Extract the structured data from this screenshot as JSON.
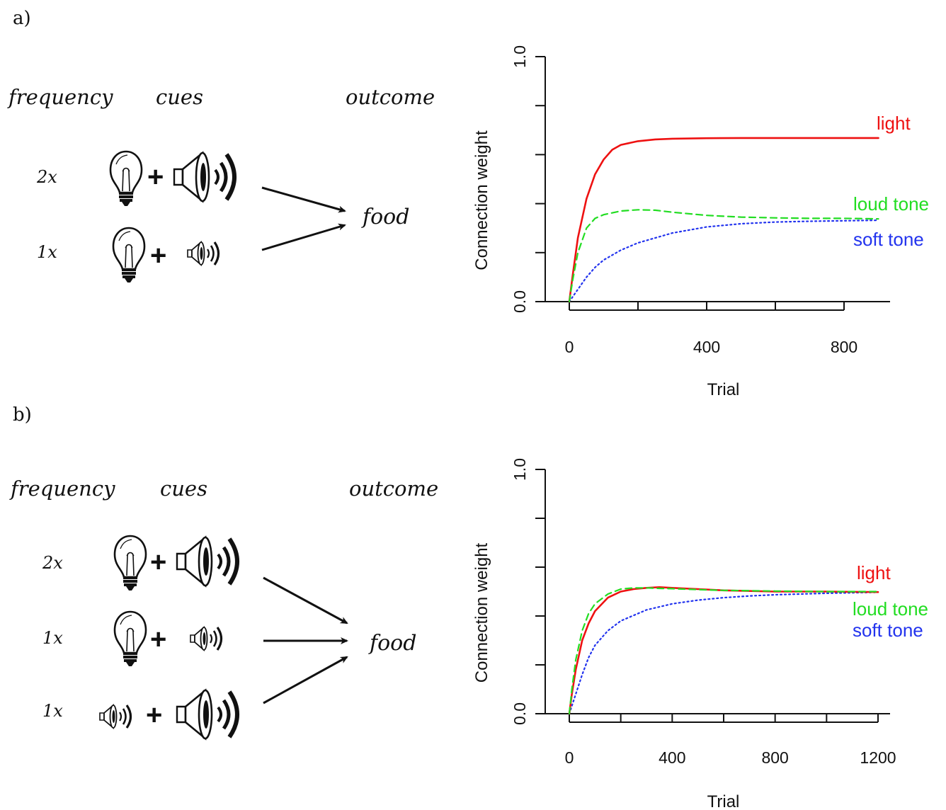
{
  "panels": [
    {
      "id": "a",
      "label": "a)",
      "headers": {
        "frequency": "frequency",
        "cues": "cues",
        "outcome": "outcome"
      },
      "rows": [
        {
          "frequency": "2x",
          "cue1": "light",
          "cue2": "loud tone"
        },
        {
          "frequency": "1x",
          "cue1": "light",
          "cue2": "soft tone"
        }
      ],
      "outcome": "food",
      "chart": {
        "type": "line",
        "xlabel": "Trial",
        "ylabel": "Connection weight",
        "xlim": [
          0,
          900
        ],
        "ylim": [
          0,
          1.0
        ],
        "xticks": [
          0,
          200,
          400,
          600,
          800
        ],
        "xtick_labels": [
          "0",
          "",
          "400",
          "",
          "800"
        ],
        "yticks": [
          0,
          0.2,
          0.4,
          0.6,
          0.8,
          1.0
        ],
        "ytick_labels": [
          "0.0",
          "",
          "",
          "",
          "",
          "1.0"
        ],
        "series": [
          {
            "name": "light",
            "color": "#ee1111",
            "dash": "solid",
            "x": [
              0,
              10,
              25,
              50,
              75,
              100,
              125,
              150,
              200,
              250,
              300,
              400,
              500,
              600,
              700,
              800,
              900
            ],
            "y": [
              0,
              0.11,
              0.26,
              0.42,
              0.52,
              0.58,
              0.62,
              0.64,
              0.655,
              0.662,
              0.665,
              0.667,
              0.668,
              0.668,
              0.668,
              0.668,
              0.668
            ]
          },
          {
            "name": "loud tone",
            "color": "#22dd22",
            "dash": "dashed",
            "x": [
              0,
              10,
              25,
              50,
              75,
              100,
              150,
              200,
              250,
              300,
              400,
              500,
              600,
              700,
              800,
              900
            ],
            "y": [
              0,
              0.09,
              0.2,
              0.3,
              0.34,
              0.355,
              0.37,
              0.375,
              0.373,
              0.365,
              0.352,
              0.345,
              0.342,
              0.34,
              0.34,
              0.338
            ]
          },
          {
            "name": "soft tone",
            "color": "#2233ee",
            "dash": "dotted",
            "x": [
              0,
              25,
              50,
              75,
              100,
              150,
              200,
              300,
              400,
              500,
              600,
              700,
              800,
              900
            ],
            "y": [
              0,
              0.05,
              0.1,
              0.14,
              0.17,
              0.21,
              0.24,
              0.28,
              0.305,
              0.318,
              0.325,
              0.328,
              0.33,
              0.332
            ]
          }
        ]
      }
    },
    {
      "id": "b",
      "label": "b)",
      "headers": {
        "frequency": "frequency",
        "cues": "cues",
        "outcome": "outcome"
      },
      "rows": [
        {
          "frequency": "2x",
          "cue1": "light",
          "cue2": "loud tone"
        },
        {
          "frequency": "1x",
          "cue1": "light",
          "cue2": "soft tone"
        },
        {
          "frequency": "1x",
          "cue1": "soft tone",
          "cue2": "loud tone"
        }
      ],
      "outcome": "food",
      "chart": {
        "type": "line",
        "xlabel": "Trial",
        "ylabel": "Connection weight",
        "xlim": [
          0,
          1200
        ],
        "ylim": [
          0,
          1.0
        ],
        "xticks": [
          0,
          200,
          400,
          600,
          800,
          1000,
          1200
        ],
        "xtick_labels": [
          "0",
          "",
          "400",
          "",
          "800",
          "",
          "1200"
        ],
        "yticks": [
          0,
          0.2,
          0.4,
          0.6,
          0.8,
          1.0
        ],
        "ytick_labels": [
          "0.0",
          "",
          "",
          "",
          "",
          "1.0"
        ],
        "series": [
          {
            "name": "light",
            "color": "#ee1111",
            "dash": "solid",
            "x": [
              0,
              10,
              25,
              50,
              75,
              100,
              150,
              200,
              250,
              300,
              350,
              400,
              500,
              600,
              800,
              1000,
              1200
            ],
            "y": [
              0,
              0.08,
              0.18,
              0.3,
              0.37,
              0.42,
              0.475,
              0.5,
              0.51,
              0.515,
              0.518,
              0.515,
              0.51,
              0.505,
              0.5,
              0.5,
              0.498
            ]
          },
          {
            "name": "loud tone",
            "color": "#22dd22",
            "dash": "dashed",
            "x": [
              0,
              10,
              25,
              50,
              75,
              100,
              150,
              200,
              250,
              300,
              350,
              400,
              500,
              600,
              800,
              1000,
              1200
            ],
            "y": [
              0,
              0.1,
              0.22,
              0.34,
              0.41,
              0.45,
              0.49,
              0.51,
              0.515,
              0.515,
              0.513,
              0.512,
              0.508,
              0.505,
              0.502,
              0.5,
              0.5
            ]
          },
          {
            "name": "soft tone",
            "color": "#2233ee",
            "dash": "dotted",
            "x": [
              0,
              25,
              50,
              75,
              100,
              150,
              200,
              300,
              400,
              500,
              600,
              700,
              800,
              1000,
              1200
            ],
            "y": [
              0,
              0.08,
              0.16,
              0.23,
              0.28,
              0.34,
              0.38,
              0.425,
              0.45,
              0.465,
              0.475,
              0.482,
              0.487,
              0.493,
              0.497
            ]
          }
        ]
      }
    }
  ]
}
